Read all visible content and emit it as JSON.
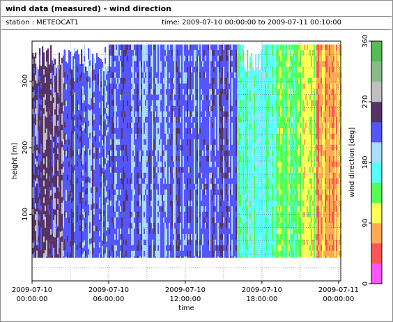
{
  "title": "wind data (measured) - wind direction",
  "station_label": "station : METEOCAT1",
  "time_label": "time: 2009-07-10 00:00:00 to 2009-07-11 00:10:00",
  "chart_data": {
    "type": "heatmap",
    "ylabel": "height [m]",
    "xlabel": "time",
    "x_ticks": [
      {
        "line1": "2009-07-10",
        "line2": "00:00:00",
        "hours": 0
      },
      {
        "line1": "2009-07-10",
        "line2": "06:00:00",
        "hours": 6
      },
      {
        "line1": "2009-07-10",
        "line2": "12:00:00",
        "hours": 12
      },
      {
        "line1": "2009-07-10",
        "line2": "18:00:00",
        "hours": 18
      },
      {
        "line1": "2009-07-11",
        "line2": "00:00:00",
        "hours": 24
      }
    ],
    "xlim_hours": [
      0,
      24.17
    ],
    "y_ticks": [
      100,
      200,
      300
    ],
    "ylim": [
      0,
      360
    ],
    "data_height_range": [
      35,
      355
    ],
    "colorbar": {
      "label": "wind direction [deg]",
      "ticks": [
        0,
        90,
        180,
        270,
        360
      ],
      "range": [
        0,
        360
      ],
      "colors": [
        "#ff55ff",
        "#ff5555",
        "#ffaa55",
        "#ffff55",
        "#55ff55",
        "#55ffff",
        "#aaddff",
        "#5555ff",
        "#553366",
        "#c0c0c0",
        "#88bb88",
        "#55bb55"
      ]
    },
    "dominant_direction_by_time": [
      {
        "hours_from": 0,
        "hours_to": 2.3,
        "direction_deg": 255
      },
      {
        "hours_from": 2.3,
        "hours_to": 7,
        "direction_deg": 225
      },
      {
        "hours_from": 7,
        "hours_to": 16,
        "direction_deg": 220
      },
      {
        "hours_from": 16,
        "hours_to": 19,
        "direction_deg": 165
      },
      {
        "hours_from": 19,
        "hours_to": 21,
        "direction_deg": 135
      },
      {
        "hours_from": 21,
        "hours_to": 22.2,
        "direction_deg": 105
      },
      {
        "hours_from": 22.2,
        "hours_to": 24.17,
        "direction_deg": 75
      }
    ]
  }
}
